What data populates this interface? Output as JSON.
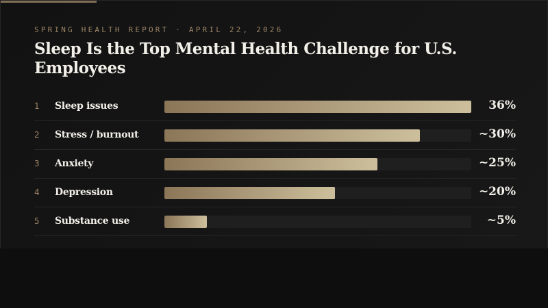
{
  "header": {
    "eyebrow": "SPRING HEALTH REPORT · APRIL 22, 2026",
    "title": "Sleep Is the Top Mental Health Challenge for U.S. Employees"
  },
  "colors": {
    "accent": "#7f6d55",
    "bar_start": "#8b7658",
    "bar_end": "#cdbf9c"
  },
  "chart_data": {
    "type": "bar",
    "orientation": "horizontal",
    "categories": [
      "Sleep issues",
      "Stress / burnout",
      "Anxiety",
      "Depression",
      "Substance use"
    ],
    "values": [
      36,
      30,
      25,
      20,
      5
    ],
    "ranks": [
      "1",
      "2",
      "3",
      "4",
      "5"
    ],
    "value_labels": [
      "36%",
      "~30%",
      "~25%",
      "~20%",
      "~5%"
    ],
    "xlim": [
      0,
      36
    ]
  }
}
